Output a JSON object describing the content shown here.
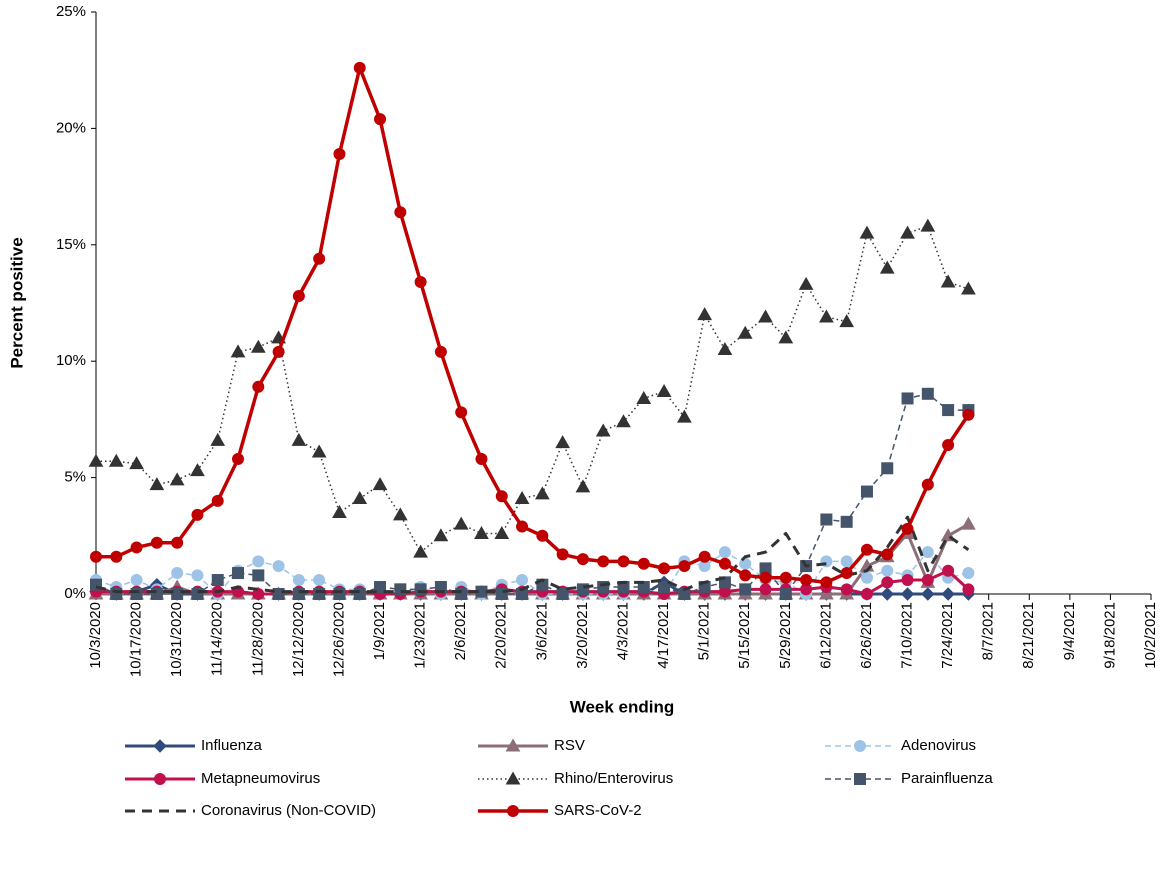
{
  "chart_data": {
    "type": "line",
    "x_label": "Week ending",
    "y_label": "Percent positive",
    "categories": [
      "10/3/2020",
      null,
      "10/17/2020",
      null,
      "10/31/2020",
      null,
      "11/14/2020",
      null,
      "11/28/2020",
      null,
      "12/12/2020",
      null,
      "12/26/2020",
      null,
      "1/9/2021",
      null,
      "1/23/2021",
      null,
      "2/6/2021",
      null,
      "2/20/2021",
      null,
      "3/6/2021",
      null,
      "3/20/2021",
      null,
      "4/3/2021",
      null,
      "4/17/2021",
      null,
      "5/1/2021",
      null,
      "5/15/2021",
      null,
      "5/29/2021",
      null,
      "6/12/2021",
      null,
      "6/26/2021",
      null,
      "7/10/2021",
      null,
      "7/24/2021",
      null,
      "8/7/2021",
      null,
      "8/21/2021",
      null,
      "9/4/2021",
      null,
      "9/18/2021",
      null,
      "10/2/2021"
    ],
    "ylim": [
      0,
      25
    ],
    "yticks": [
      {
        "value": 0,
        "label": "0%"
      },
      {
        "value": 5,
        "label": "5%"
      },
      {
        "value": 10,
        "label": "10%"
      },
      {
        "value": 15,
        "label": "15%"
      },
      {
        "value": 20,
        "label": "20%"
      },
      {
        "value": 25,
        "label": "25%"
      }
    ],
    "legend": "bottom",
    "series": [
      {
        "name": "Influenza",
        "color": "#2f4b7c",
        "marker": "diamond",
        "line_style": "solid",
        "values": [
          0.1,
          0,
          0.1,
          0.4,
          0,
          0,
          0,
          0.1,
          0,
          0,
          0,
          0,
          0,
          0,
          0,
          0,
          0,
          0,
          0,
          0,
          0,
          0,
          0,
          0,
          0,
          0,
          0,
          0,
          0.5,
          0,
          0,
          0,
          0,
          0,
          0,
          0,
          0,
          0,
          0,
          0,
          0,
          0,
          0,
          0,
          null,
          null,
          null,
          null,
          null,
          null,
          null,
          null,
          null
        ]
      },
      {
        "name": "RSV",
        "color": "#8c6e78",
        "marker": "triangle",
        "line_style": "solid",
        "values": [
          0,
          0,
          0,
          0,
          0.3,
          0,
          0,
          0,
          0,
          0,
          0,
          0,
          0,
          0,
          0,
          0,
          0,
          0,
          0,
          0,
          0,
          0,
          0,
          0,
          0,
          0,
          0,
          0,
          0,
          0,
          0,
          0,
          0,
          0,
          0,
          0,
          0,
          0,
          1.2,
          1.6,
          2.6,
          0.5,
          2.5,
          3.0,
          null,
          null,
          null,
          null,
          null,
          null,
          null,
          null,
          null
        ]
      },
      {
        "name": "Adenovirus",
        "color": "#9dc3e6",
        "marker": "circle",
        "line_style": "dashed",
        "values": [
          0.6,
          0.3,
          0.6,
          0.2,
          0.9,
          0.8,
          0,
          1.0,
          1.4,
          1.2,
          0.6,
          0.6,
          0.2,
          0.2,
          0,
          0,
          0.3,
          0,
          0.3,
          0,
          0.4,
          0.6,
          0,
          0,
          0,
          0,
          0,
          0.2,
          0,
          1.4,
          1.2,
          1.8,
          1.3,
          0.6,
          0.5,
          0,
          1.4,
          1.4,
          0.7,
          1.0,
          0.8,
          1.8,
          0.7,
          0.9,
          null,
          null,
          null,
          null,
          null,
          null,
          null,
          null,
          null
        ]
      },
      {
        "name": "Metapneumovirus",
        "color": "#c0104e",
        "marker": "circle",
        "line_style": "solid",
        "values": [
          0.1,
          0.1,
          0.1,
          0.1,
          0.1,
          0.1,
          0.1,
          0.1,
          0,
          0,
          0.1,
          0.1,
          0.1,
          0.1,
          0,
          0,
          0.1,
          0.1,
          0.1,
          0.1,
          0.2,
          0.1,
          0.1,
          0.1,
          0.1,
          0.1,
          0.1,
          0.1,
          0,
          0.1,
          0.1,
          0.1,
          0.2,
          0.2,
          0.2,
          0.2,
          0.3,
          0.2,
          0,
          0.5,
          0.6,
          0.6,
          1.0,
          0.2,
          null,
          null,
          null,
          null,
          null,
          null,
          null,
          null,
          null
        ]
      },
      {
        "name": "Rhino/Enterovirus",
        "color": "#333333",
        "marker": "triangle",
        "line_style": "dotted",
        "values": [
          5.7,
          5.7,
          5.6,
          4.7,
          4.9,
          5.3,
          6.6,
          10.4,
          10.6,
          11.0,
          6.6,
          6.1,
          3.5,
          4.1,
          4.7,
          3.4,
          1.8,
          2.5,
          3.0,
          2.6,
          2.6,
          4.1,
          4.3,
          6.5,
          4.6,
          7.0,
          7.4,
          8.4,
          8.7,
          7.6,
          12.0,
          10.5,
          11.2,
          11.9,
          11.0,
          13.3,
          11.9,
          11.7,
          15.5,
          14.0,
          15.5,
          15.8,
          13.4,
          13.1,
          null,
          null,
          null,
          null,
          null,
          null,
          null,
          null,
          null
        ]
      },
      {
        "name": "Parainfluenza",
        "color": "#44546a",
        "marker": "square",
        "line_style": "dashed",
        "values": [
          0.4,
          0,
          0,
          0,
          0,
          0,
          0.6,
          0.9,
          0.8,
          0,
          0,
          0,
          0,
          0,
          0.3,
          0.2,
          0.2,
          0.3,
          0,
          0.1,
          0,
          0,
          0.4,
          0,
          0.2,
          0.3,
          0.3,
          0.3,
          0.3,
          0,
          0.3,
          0.5,
          0.2,
          1.1,
          0,
          1.2,
          3.2,
          3.1,
          4.4,
          5.4,
          8.4,
          8.6,
          7.9,
          7.9,
          null,
          null,
          null,
          null,
          null,
          null,
          null,
          null,
          null
        ]
      },
      {
        "name": "Coronavirus (Non-COVID)",
        "color": "#333333",
        "marker": null,
        "line_style": "longdash",
        "values": [
          0.3,
          0.1,
          0.1,
          0.1,
          0.1,
          0.1,
          0.1,
          0.3,
          0.2,
          0.1,
          0.1,
          0.1,
          0.1,
          0.1,
          0.1,
          0.1,
          0.1,
          0.1,
          0.1,
          0.1,
          0.1,
          0.2,
          0.6,
          0.2,
          0.3,
          0.4,
          0.5,
          0.5,
          0.6,
          0.2,
          0.5,
          0.7,
          1.6,
          1.8,
          2.6,
          1.2,
          1.3,
          0.8,
          1.0,
          2.0,
          3.3,
          1.0,
          2.5,
          1.9,
          null,
          null,
          null,
          null,
          null,
          null,
          null,
          null,
          null
        ]
      },
      {
        "name": "SARS-CoV-2",
        "color": "#c00000",
        "marker": "circle",
        "line_style": "bold",
        "values": [
          1.6,
          1.6,
          2.0,
          2.2,
          2.2,
          3.4,
          4.0,
          5.8,
          8.9,
          10.4,
          12.8,
          14.4,
          18.9,
          22.6,
          20.4,
          16.4,
          13.4,
          10.4,
          7.8,
          5.8,
          4.2,
          2.9,
          2.5,
          1.7,
          1.5,
          1.4,
          1.4,
          1.3,
          1.1,
          1.2,
          1.6,
          1.3,
          0.8,
          0.7,
          0.7,
          0.6,
          0.5,
          0.9,
          1.9,
          1.7,
          2.8,
          4.7,
          6.4,
          7.7,
          null,
          null,
          null,
          null,
          null,
          null,
          null,
          null,
          null
        ]
      }
    ]
  }
}
